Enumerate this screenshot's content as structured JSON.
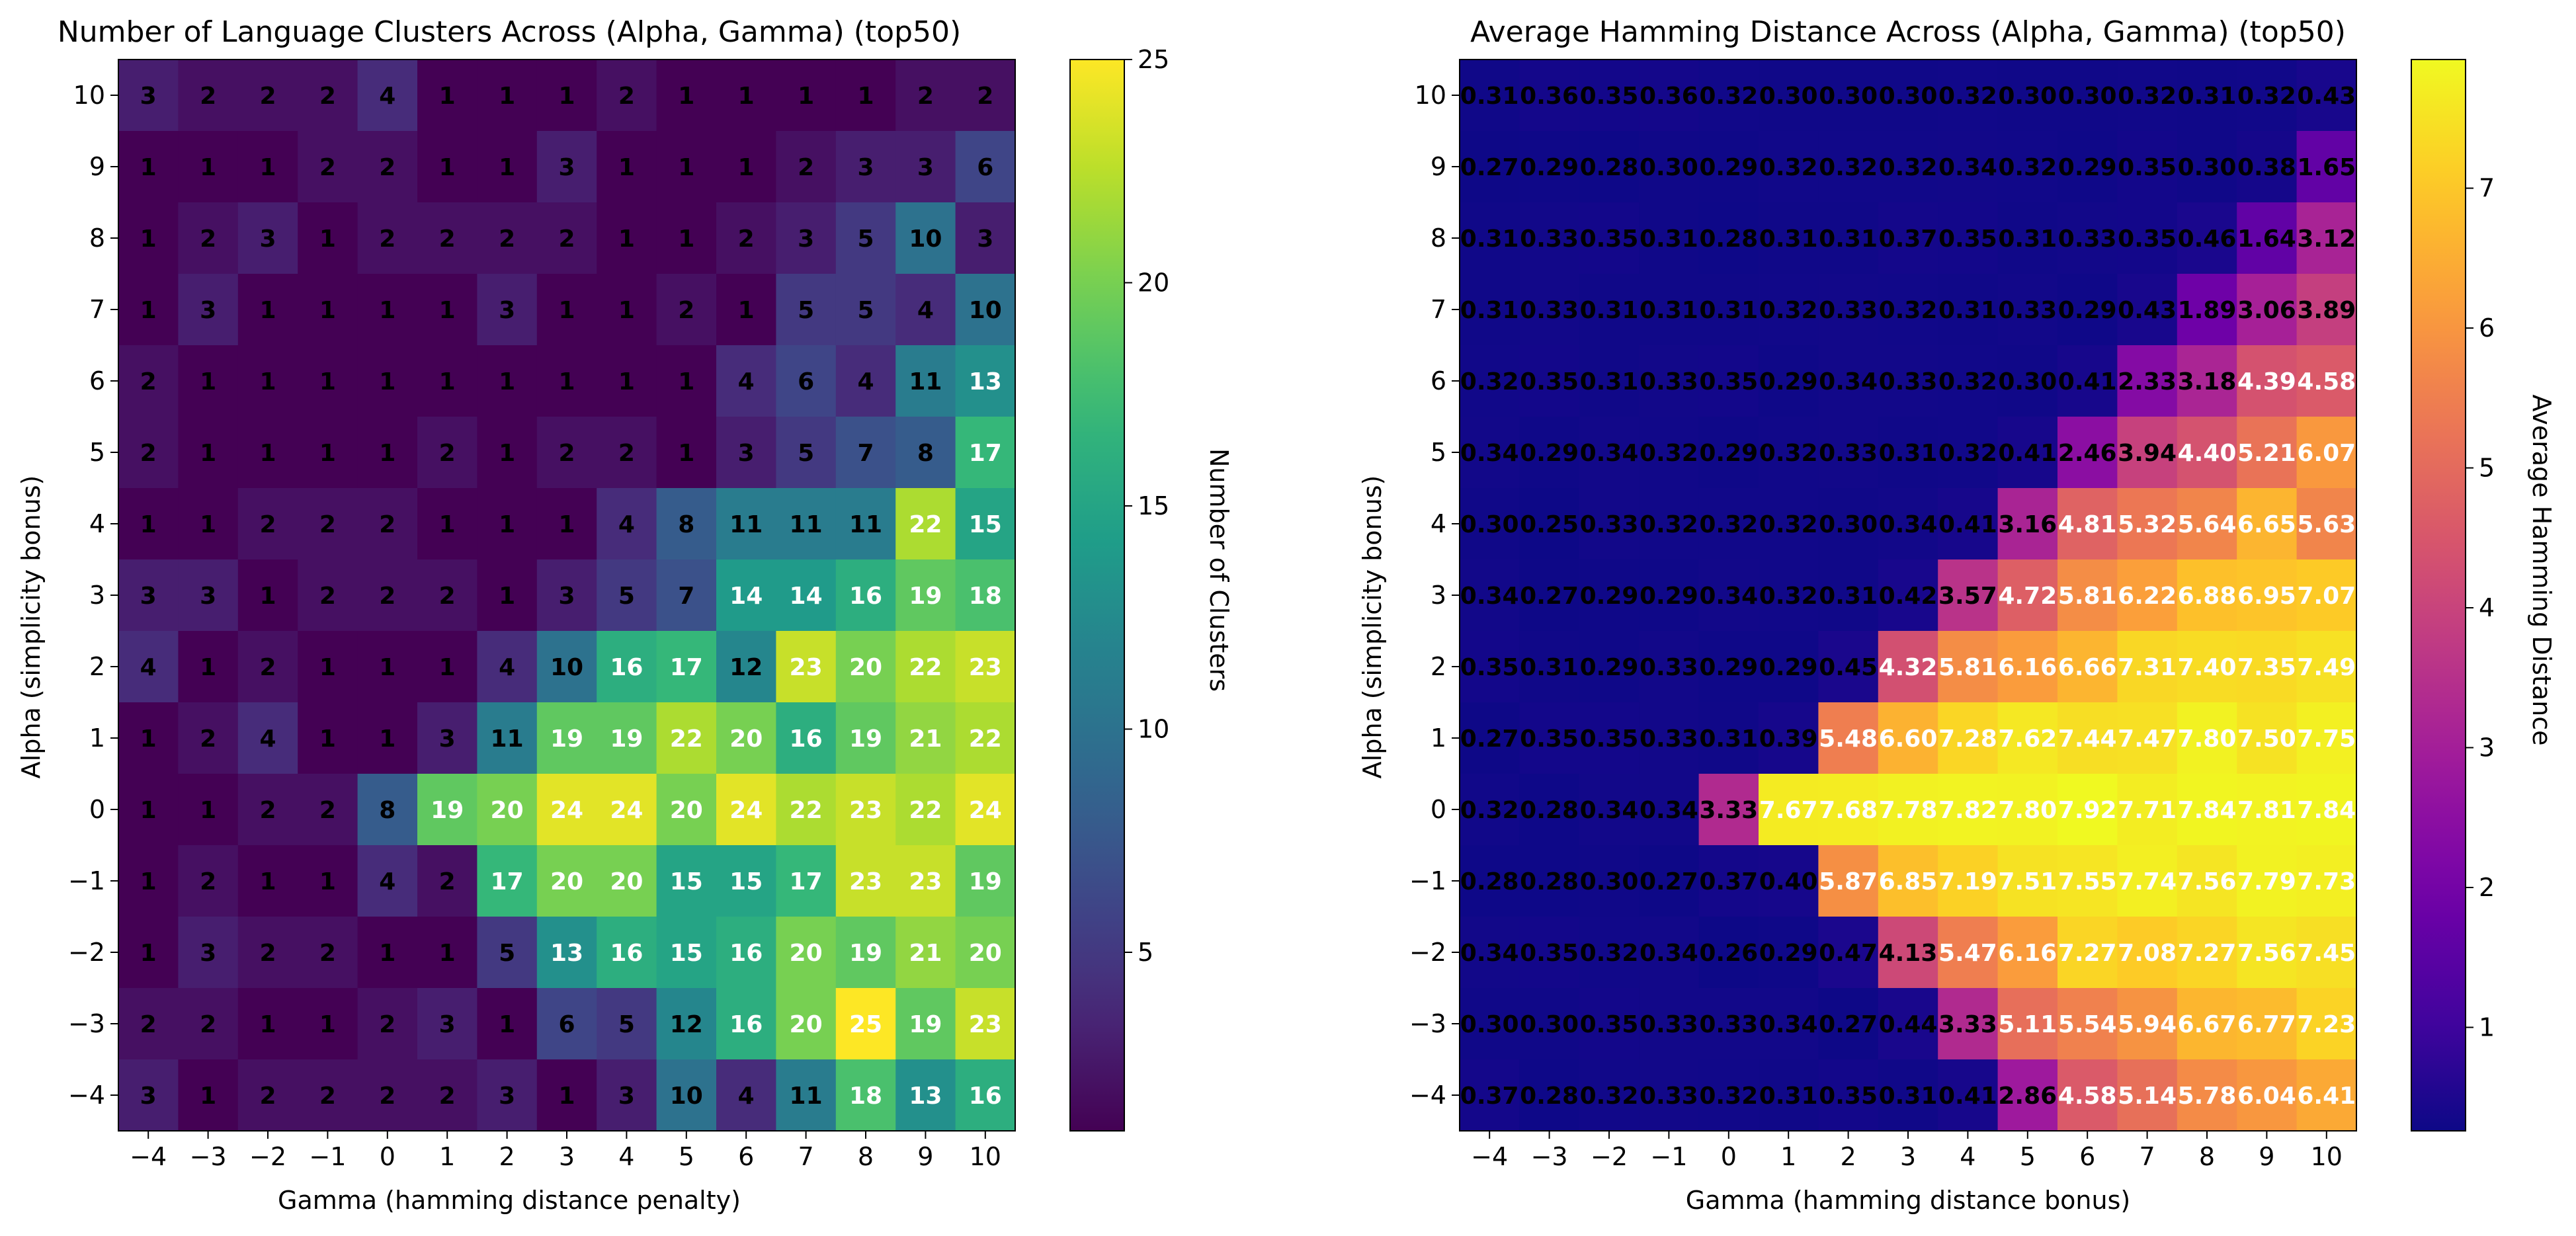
{
  "charts": [
    {
      "type": "heatmap",
      "title": "Number of Language Clusters Across (Alpha, Gamma) (top50)",
      "xlabel": "Gamma (hamming distance penalty)",
      "ylabel": "Alpha (simplicity bonus)",
      "colorbar_label": "Number of Clusters",
      "colormap": "viridis",
      "x": [
        -4,
        -3,
        -2,
        -1,
        0,
        1,
        2,
        3,
        4,
        5,
        6,
        7,
        8,
        9,
        10
      ],
      "y": [
        10,
        9,
        8,
        7,
        6,
        5,
        4,
        3,
        2,
        1,
        0,
        -1,
        -2,
        -3,
        -4
      ],
      "x_tick_labels": [
        "−4",
        "−3",
        "−2",
        "−1",
        "0",
        "1",
        "2",
        "3",
        "4",
        "5",
        "6",
        "7",
        "8",
        "9",
        "10"
      ],
      "y_tick_labels": [
        "10",
        "9",
        "8",
        "7",
        "6",
        "5",
        "4",
        "3",
        "2",
        "1",
        "0",
        "−1",
        "−2",
        "−3",
        "−4"
      ],
      "vmin": 1,
      "vmax": 25,
      "colorbar_ticks": [
        5,
        10,
        15,
        20,
        25
      ],
      "values": [
        [
          3,
          2,
          2,
          2,
          4,
          1,
          1,
          1,
          2,
          1,
          1,
          1,
          1,
          2,
          2
        ],
        [
          1,
          1,
          1,
          2,
          2,
          1,
          1,
          3,
          1,
          1,
          1,
          2,
          3,
          3,
          6
        ],
        [
          1,
          2,
          3,
          1,
          2,
          2,
          2,
          2,
          1,
          1,
          2,
          3,
          5,
          10,
          3
        ],
        [
          1,
          3,
          1,
          1,
          1,
          1,
          3,
          1,
          1,
          2,
          1,
          5,
          5,
          4,
          10
        ],
        [
          2,
          1,
          1,
          1,
          1,
          1,
          1,
          1,
          1,
          1,
          4,
          6,
          4,
          11,
          13
        ],
        [
          2,
          1,
          1,
          1,
          1,
          2,
          1,
          2,
          2,
          1,
          3,
          5,
          7,
          8,
          17
        ],
        [
          1,
          1,
          2,
          2,
          2,
          1,
          1,
          1,
          4,
          8,
          11,
          11,
          11,
          22,
          15
        ],
        [
          3,
          3,
          1,
          2,
          2,
          2,
          1,
          3,
          5,
          7,
          14,
          14,
          16,
          19,
          18
        ],
        [
          4,
          1,
          2,
          1,
          1,
          1,
          4,
          10,
          16,
          17,
          12,
          23,
          20,
          22,
          23
        ],
        [
          1,
          2,
          4,
          1,
          1,
          3,
          11,
          19,
          19,
          22,
          20,
          16,
          19,
          21,
          22
        ],
        [
          1,
          1,
          2,
          2,
          8,
          19,
          20,
          24,
          24,
          20,
          24,
          22,
          23,
          22,
          24
        ],
        [
          1,
          2,
          1,
          1,
          4,
          2,
          17,
          20,
          20,
          15,
          15,
          17,
          23,
          23,
          19
        ],
        [
          1,
          3,
          2,
          2,
          1,
          1,
          5,
          13,
          16,
          15,
          16,
          20,
          19,
          21,
          20
        ],
        [
          2,
          2,
          1,
          1,
          2,
          3,
          1,
          6,
          5,
          12,
          16,
          20,
          25,
          19,
          23
        ],
        [
          3,
          1,
          2,
          2,
          2,
          2,
          3,
          1,
          3,
          10,
          4,
          11,
          18,
          13,
          16
        ]
      ],
      "text_threshold": 13
    },
    {
      "type": "heatmap",
      "title": "Average Hamming Distance Across (Alpha, Gamma) (top50)",
      "xlabel": "Gamma (hamming distance bonus)",
      "ylabel": "Alpha (simplicity bonus)",
      "colorbar_label": "Average Hamming Distance",
      "colormap": "plasma",
      "x": [
        -4,
        -3,
        -2,
        -1,
        0,
        1,
        2,
        3,
        4,
        5,
        6,
        7,
        8,
        9,
        10
      ],
      "y": [
        10,
        9,
        8,
        7,
        6,
        5,
        4,
        3,
        2,
        1,
        0,
        -1,
        -2,
        -3,
        -4
      ],
      "x_tick_labels": [
        "−4",
        "−3",
        "−2",
        "−1",
        "0",
        "1",
        "2",
        "3",
        "4",
        "5",
        "6",
        "7",
        "8",
        "9",
        "10"
      ],
      "y_tick_labels": [
        "10",
        "9",
        "8",
        "7",
        "6",
        "5",
        "4",
        "3",
        "2",
        "1",
        "0",
        "−1",
        "−2",
        "−3",
        "−4"
      ],
      "vmin": 0.26,
      "vmax": 7.92,
      "colorbar_ticks": [
        1,
        2,
        3,
        4,
        5,
        6,
        7
      ],
      "values": [
        [
          0.31,
          0.36,
          0.35,
          0.36,
          0.32,
          0.3,
          0.3,
          0.3,
          0.32,
          0.3,
          0.3,
          0.32,
          0.31,
          0.32,
          0.43
        ],
        [
          0.27,
          0.29,
          0.28,
          0.3,
          0.29,
          0.32,
          0.32,
          0.32,
          0.34,
          0.32,
          0.29,
          0.35,
          0.3,
          0.38,
          1.65
        ],
        [
          0.31,
          0.33,
          0.35,
          0.31,
          0.28,
          0.31,
          0.31,
          0.37,
          0.35,
          0.31,
          0.33,
          0.35,
          0.46,
          1.64,
          3.12
        ],
        [
          0.31,
          0.33,
          0.31,
          0.31,
          0.31,
          0.32,
          0.33,
          0.32,
          0.31,
          0.33,
          0.29,
          0.43,
          1.89,
          3.06,
          3.89
        ],
        [
          0.32,
          0.35,
          0.31,
          0.33,
          0.35,
          0.29,
          0.34,
          0.33,
          0.32,
          0.3,
          0.41,
          2.33,
          3.18,
          4.39,
          4.58
        ],
        [
          0.34,
          0.29,
          0.34,
          0.32,
          0.29,
          0.32,
          0.33,
          0.31,
          0.32,
          0.41,
          2.46,
          3.94,
          4.4,
          5.21,
          6.07
        ],
        [
          0.3,
          0.25,
          0.33,
          0.32,
          0.32,
          0.32,
          0.3,
          0.34,
          0.41,
          3.16,
          4.81,
          5.32,
          5.64,
          6.65,
          5.63
        ],
        [
          0.34,
          0.27,
          0.29,
          0.29,
          0.34,
          0.32,
          0.31,
          0.42,
          3.57,
          4.72,
          5.81,
          6.22,
          6.88,
          6.95,
          7.07
        ],
        [
          0.35,
          0.31,
          0.29,
          0.33,
          0.29,
          0.29,
          0.45,
          4.32,
          5.81,
          6.16,
          6.66,
          7.31,
          7.4,
          7.35,
          7.49
        ],
        [
          0.27,
          0.35,
          0.35,
          0.33,
          0.31,
          0.39,
          5.48,
          6.6,
          7.28,
          7.62,
          7.44,
          7.47,
          7.8,
          7.5,
          7.75
        ],
        [
          0.32,
          0.28,
          0.34,
          0.34,
          3.33,
          7.67,
          7.68,
          7.78,
          7.82,
          7.8,
          7.92,
          7.71,
          7.84,
          7.81,
          7.84
        ],
        [
          0.28,
          0.28,
          0.3,
          0.27,
          0.37,
          0.4,
          5.87,
          6.85,
          7.19,
          7.51,
          7.55,
          7.74,
          7.56,
          7.79,
          7.73
        ],
        [
          0.34,
          0.35,
          0.32,
          0.34,
          0.26,
          0.29,
          0.47,
          4.13,
          5.47,
          6.16,
          7.27,
          7.08,
          7.27,
          7.56,
          7.45
        ],
        [
          0.3,
          0.3,
          0.35,
          0.33,
          0.33,
          0.34,
          0.27,
          0.44,
          3.33,
          5.11,
          5.54,
          5.94,
          6.67,
          6.77,
          7.23
        ],
        [
          0.37,
          0.28,
          0.32,
          0.33,
          0.32,
          0.31,
          0.35,
          0.31,
          0.41,
          2.86,
          4.58,
          5.14,
          5.78,
          6.04,
          6.41
        ]
      ],
      "text_threshold": 4.2
    }
  ]
}
